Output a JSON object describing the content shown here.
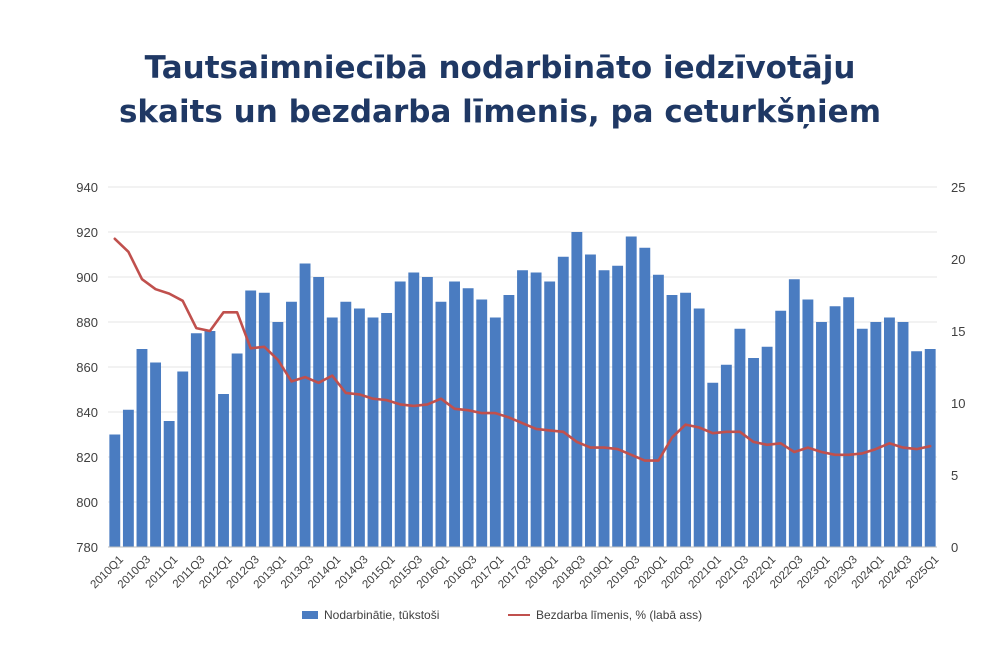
{
  "title": {
    "line1": "Tautsaimniecībā nodarbināto iedzīvotāju",
    "line2": "skaits un bezdarba līmenis, pa ceturkšņiem"
  },
  "colors": {
    "title": "#1f3864",
    "bar": "#4a7cc1",
    "line": "#c0504d",
    "grid": "#e6e6e6",
    "axis_text": "#404040"
  },
  "legend": {
    "bar_label": "Nodarbinātie, tūkstoši",
    "line_label": "Bezdarba līmenis, % (labā ass)",
    "position": "bottom"
  },
  "chart_data": {
    "type": "bar",
    "categories": [
      "2010Q1",
      "2010Q2",
      "2010Q3",
      "2010Q4",
      "2011Q1",
      "2011Q2",
      "2011Q3",
      "2011Q4",
      "2012Q1",
      "2012Q2",
      "2012Q3",
      "2012Q4",
      "2013Q1",
      "2013Q2",
      "2013Q3",
      "2013Q4",
      "2014Q1",
      "2014Q2",
      "2014Q3",
      "2014Q4",
      "2015Q1",
      "2015Q2",
      "2015Q3",
      "2015Q4",
      "2016Q1",
      "2016Q2",
      "2016Q3",
      "2016Q4",
      "2017Q1",
      "2017Q2",
      "2017Q3",
      "2017Q4",
      "2018Q1",
      "2018Q2",
      "2018Q3",
      "2018Q4",
      "2019Q1",
      "2019Q2",
      "2019Q3",
      "2019Q4",
      "2020Q1",
      "2020Q2",
      "2020Q3",
      "2020Q4",
      "2021Q1",
      "2021Q2",
      "2021Q3",
      "2021Q4",
      "2022Q1",
      "2022Q2",
      "2022Q3",
      "2022Q4",
      "2023Q1",
      "2023Q2",
      "2023Q3",
      "2023Q4",
      "2024Q1",
      "2024Q2",
      "2024Q3",
      "2024Q4",
      "2025Q1"
    ],
    "tick_labels": [
      "2010Q1",
      "2010Q3",
      "2011Q1",
      "2011Q3",
      "2012Q1",
      "2012Q3",
      "2013Q1",
      "2013Q3",
      "2014Q1",
      "2014Q3",
      "2015Q1",
      "2015Q3",
      "2016Q1",
      "2016Q3",
      "2017Q1",
      "2017Q3",
      "2018Q1",
      "2018Q3",
      "2019Q1",
      "2019Q3",
      "2020Q1",
      "2020Q3",
      "2021Q1",
      "2021Q3",
      "2022Q1",
      "2022Q3",
      "2023Q1",
      "2023Q3",
      "2024Q1",
      "2024Q3",
      "2025Q1"
    ],
    "series": [
      {
        "name": "Nodarbinātie, tūkstoši",
        "type": "bar",
        "axis": "left",
        "values": [
          830,
          841,
          868,
          862,
          836,
          858,
          875,
          876,
          848,
          866,
          894,
          893,
          880,
          889,
          906,
          900,
          882,
          889,
          886,
          882,
          884,
          898,
          902,
          900,
          889,
          898,
          895,
          890,
          882,
          892,
          903,
          902,
          898,
          909,
          920,
          910,
          903,
          905,
          918,
          913,
          901,
          892,
          893,
          886,
          853,
          861,
          877,
          864,
          869,
          885,
          899,
          890,
          880,
          887,
          891,
          877,
          880,
          882,
          880,
          867,
          868
        ]
      },
      {
        "name": "Bezdarba līmenis, % (labā ass)",
        "type": "line",
        "axis": "right",
        "values": [
          21.4,
          20.5,
          18.6,
          17.9,
          17.6,
          17.1,
          15.2,
          15.0,
          16.3,
          16.3,
          13.8,
          13.9,
          13.0,
          11.5,
          11.8,
          11.4,
          11.9,
          10.7,
          10.6,
          10.3,
          10.2,
          9.9,
          9.8,
          9.9,
          10.3,
          9.6,
          9.5,
          9.3,
          9.3,
          9.0,
          8.6,
          8.2,
          8.1,
          8.0,
          7.3,
          6.9,
          6.9,
          6.8,
          6.4,
          6.0,
          6.0,
          7.6,
          8.5,
          8.3,
          7.9,
          8.0,
          8.0,
          7.3,
          7.1,
          7.2,
          6.6,
          6.9,
          6.6,
          6.4,
          6.4,
          6.5,
          6.8,
          7.2,
          6.9,
          6.8,
          7.0
        ]
      }
    ],
    "y_left": {
      "min": 780,
      "max": 940,
      "step": 20,
      "ticks": [
        "780",
        "800",
        "820",
        "840",
        "860",
        "880",
        "900",
        "920",
        "940"
      ]
    },
    "y_right": {
      "min": 0,
      "max": 25,
      "step": 5,
      "ticks": [
        "0",
        "5",
        "10",
        "15",
        "20",
        "25"
      ]
    },
    "grid": true
  }
}
